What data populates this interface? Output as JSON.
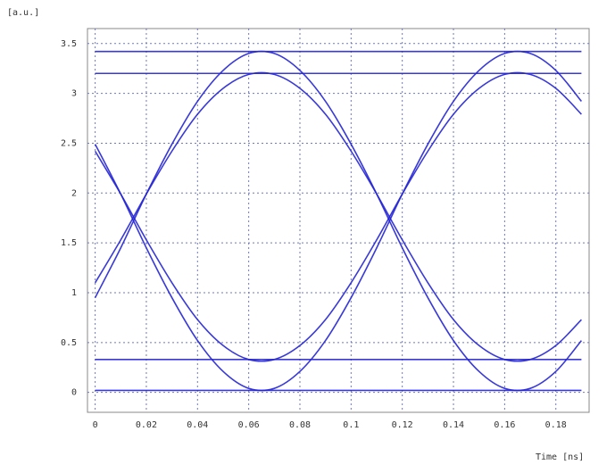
{
  "chart_data": {
    "type": "line",
    "y_label": "[a.u.]",
    "x_label": "Time [ns]",
    "x": [
      0,
      0.01,
      0.02,
      0.03,
      0.04,
      0.05,
      0.06,
      0.07,
      0.08,
      0.09,
      0.1,
      0.11,
      0.12,
      0.13,
      0.14,
      0.15,
      0.16,
      0.17,
      0.18,
      0.19
    ],
    "xlim": [
      -0.003,
      0.193
    ],
    "xticks": [
      0,
      0.02,
      0.04,
      0.06,
      0.08,
      0.1,
      0.12,
      0.14,
      0.16,
      0.18
    ],
    "ylim": [
      -0.2,
      3.65
    ],
    "yticks": [
      0,
      0.5,
      1,
      1.5,
      2,
      2.5,
      3,
      3.5
    ],
    "grid": true,
    "series": [
      {
        "color": "#2424d4",
        "values": [
          3.42,
          3.42,
          3.42,
          3.42,
          3.42,
          3.42,
          3.42,
          3.42,
          3.42,
          3.42,
          3.42,
          3.42,
          3.42,
          3.42,
          3.42,
          3.42,
          3.42,
          3.42,
          3.42,
          3.42
        ]
      },
      {
        "color": "#2424d4",
        "values": [
          3.2,
          3.2,
          3.2,
          3.2,
          3.2,
          3.2,
          3.2,
          3.2,
          3.2,
          3.2,
          3.2,
          3.2,
          3.2,
          3.2,
          3.2,
          3.2,
          3.2,
          3.2,
          3.2,
          3.2
        ]
      },
      {
        "color": "#2424d4",
        "values": [
          0.02,
          0.02,
          0.02,
          0.02,
          0.02,
          0.02,
          0.02,
          0.02,
          0.02,
          0.02,
          0.02,
          0.02,
          0.02,
          0.02,
          0.02,
          0.02,
          0.02,
          0.02,
          0.02,
          0.02
        ]
      },
      {
        "color": "#2424d4",
        "values": [
          0.33,
          0.33,
          0.33,
          0.33,
          0.33,
          0.33,
          0.33,
          0.33,
          0.33,
          0.33,
          0.33,
          0.33,
          0.33,
          0.33,
          0.33,
          0.33,
          0.33,
          0.33,
          0.33,
          0.33
        ]
      },
      {
        "color": "#2424d4",
        "values": [
          2.49,
          1.99,
          1.45,
          0.95,
          0.52,
          0.21,
          0.04,
          0.04,
          0.21,
          0.52,
          0.95,
          1.45,
          1.99,
          2.49,
          2.92,
          3.23,
          3.4,
          3.4,
          3.23,
          2.92
        ]
      },
      {
        "color": "#2424d4",
        "values": [
          0.95,
          1.45,
          1.99,
          2.49,
          2.92,
          3.23,
          3.4,
          3.4,
          3.23,
          2.92,
          2.49,
          1.99,
          1.45,
          0.95,
          0.52,
          0.21,
          0.04,
          0.04,
          0.21,
          0.52
        ]
      },
      {
        "color": "#2424d4",
        "values": [
          2.42,
          1.99,
          1.53,
          1.1,
          0.73,
          0.47,
          0.33,
          0.33,
          0.47,
          0.73,
          1.1,
          1.53,
          1.99,
          2.42,
          2.79,
          3.05,
          3.19,
          3.19,
          3.05,
          2.79
        ]
      },
      {
        "color": "#2424d4",
        "values": [
          1.1,
          1.53,
          1.99,
          2.42,
          2.79,
          3.05,
          3.19,
          3.19,
          3.05,
          2.79,
          2.42,
          1.99,
          1.53,
          1.1,
          0.73,
          0.47,
          0.33,
          0.33,
          0.47,
          0.73
        ]
      }
    ]
  }
}
